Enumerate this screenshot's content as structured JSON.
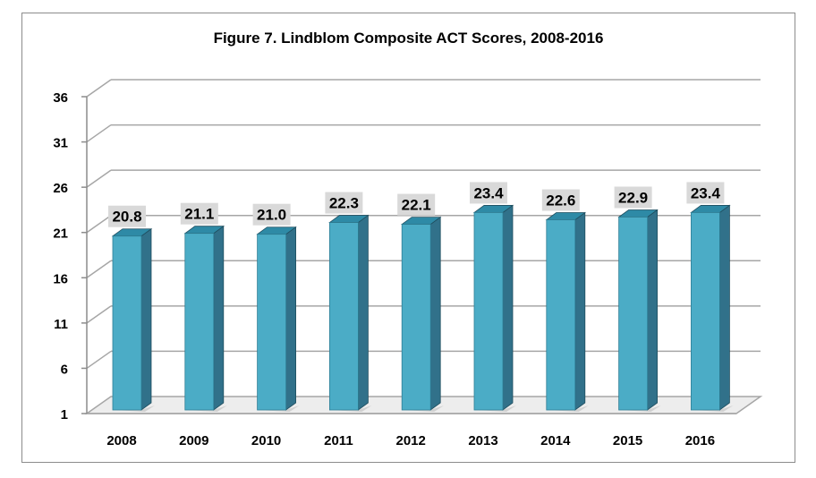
{
  "chart_data": {
    "type": "bar",
    "title": "Figure 7. Lindblom Composite ACT Scores, 2008-2016",
    "xlabel": "",
    "ylabel": "",
    "categories": [
      "2008",
      "2009",
      "2010",
      "2011",
      "2012",
      "2013",
      "2014",
      "2015",
      "2016"
    ],
    "values": [
      20.8,
      21.1,
      21.0,
      22.3,
      22.1,
      23.4,
      22.6,
      22.9,
      23.4
    ],
    "data_labels": [
      "20.8",
      "21.1",
      "21.0",
      "22.3",
      "22.1",
      "23.4",
      "22.6",
      "22.9",
      "23.4"
    ],
    "yticks": [
      1,
      6,
      11,
      16,
      21,
      26,
      31,
      36
    ],
    "ylim": [
      1,
      36
    ],
    "grid": true,
    "legend": "none",
    "style": "3d-column",
    "colors": {
      "bar_front": "#4bacc6",
      "bar_side": "#31718a",
      "bar_top": "#2e8aa6",
      "label_bg": "#d9d9d9",
      "grid": "#a6a6a6"
    }
  }
}
